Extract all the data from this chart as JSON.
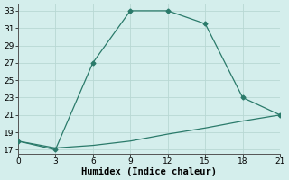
{
  "line1_x": [
    0,
    3,
    6,
    9,
    12,
    15,
    18,
    21
  ],
  "line1_y": [
    18,
    17,
    27,
    33,
    33,
    31.5,
    23,
    21
  ],
  "line2_x": [
    0,
    3,
    6,
    9,
    12,
    15,
    18,
    21
  ],
  "line2_y": [
    18,
    17.2,
    17.5,
    18.0,
    18.8,
    19.5,
    20.3,
    21
  ],
  "line_color": "#2a7a6a",
  "bg_color": "#d4eeec",
  "grid_color": "#b8d8d4",
  "xlabel": "Humidex (Indice chaleur)",
  "xlim": [
    0,
    21
  ],
  "ylim": [
    17,
    33
  ],
  "xticks": [
    0,
    3,
    6,
    9,
    12,
    15,
    18,
    21
  ],
  "yticks": [
    17,
    19,
    21,
    23,
    25,
    27,
    29,
    31,
    33
  ],
  "xlabel_fontsize": 7.5,
  "tick_fontsize": 6.5
}
